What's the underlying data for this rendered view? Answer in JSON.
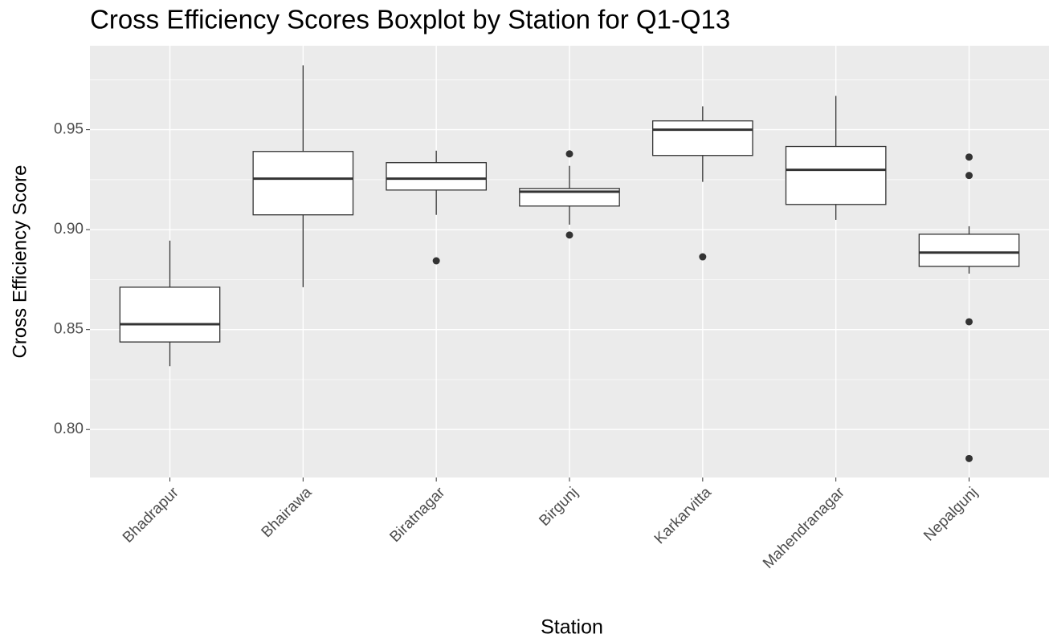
{
  "chart_data": {
    "type": "box",
    "title": "Cross Efficiency Scores Boxplot by Station for Q1-Q13",
    "x_label": "Station",
    "y_label": "Cross Efficiency Score",
    "categories": [
      "Bhadrapur",
      "Bhairawa",
      "Biratnagar",
      "Birgunj",
      "Karkarvitta",
      "Mahendranagar",
      "Nepalgunj"
    ],
    "boxes": [
      {
        "min": 0.8317,
        "q1": 0.8438,
        "median": 0.8527,
        "q3": 0.8712,
        "max": 0.8945,
        "outliers": []
      },
      {
        "min": 0.8712,
        "q1": 0.9074,
        "median": 0.9255,
        "q3": 0.9391,
        "max": 0.9822,
        "outliers": []
      },
      {
        "min": 0.9074,
        "q1": 0.9198,
        "median": 0.9255,
        "q3": 0.9335,
        "max": 0.9395,
        "outliers": [
          0.8844
        ]
      },
      {
        "min": 0.9025,
        "q1": 0.9118,
        "median": 0.919,
        "q3": 0.9206,
        "max": 0.9319,
        "outliers": [
          0.9379,
          0.8973
        ]
      },
      {
        "min": 0.9239,
        "q1": 0.9371,
        "median": 0.95,
        "q3": 0.9544,
        "max": 0.9617,
        "outliers": [
          0.8864
        ]
      },
      {
        "min": 0.9049,
        "q1": 0.9126,
        "median": 0.9299,
        "q3": 0.9416,
        "max": 0.9669,
        "outliers": []
      },
      {
        "min": 0.878,
        "q1": 0.8816,
        "median": 0.8885,
        "q3": 0.8977,
        "max": 0.9017,
        "outliers": [
          0.9363,
          0.9271,
          0.8539,
          0.7855
        ]
      }
    ],
    "ylim": [
      0.776,
      0.992
    ],
    "yticks": [
      {
        "value": 0.8,
        "label": "0.80"
      },
      0.85,
      {
        "value": 0.9,
        "label": "0.90"
      },
      0.95
    ],
    "y_minor_grid": [
      0.825,
      0.875,
      0.925,
      0.975
    ],
    "grid": true,
    "panel_color": "#ebebeb",
    "box_fill": "#ffffff",
    "line_color": "#333333"
  }
}
